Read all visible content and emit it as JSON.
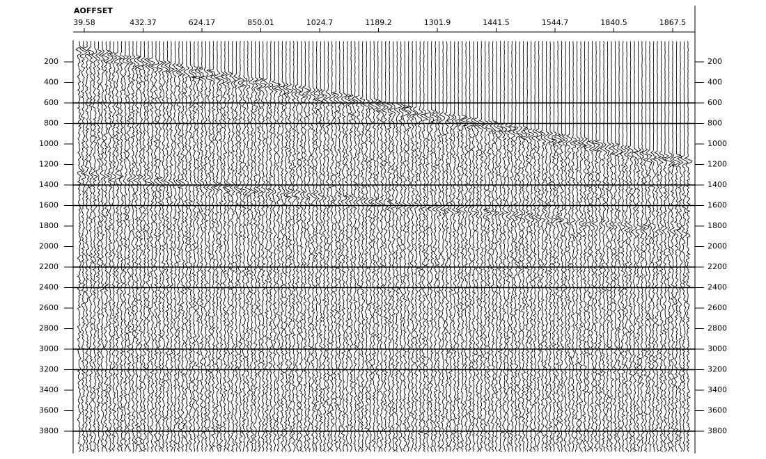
{
  "chart_data": {
    "type": "wiggle",
    "x_label": "AOFFSET",
    "categories": [
      "39.58",
      "432.37",
      "624.17",
      "850.01",
      "1024.7",
      "1189.2",
      "1301.9",
      "1441.5",
      "1544.7",
      "1840.5",
      "1867.5"
    ],
    "ylim": [
      0,
      4000
    ],
    "yticks": [
      200,
      400,
      600,
      800,
      1000,
      1200,
      1400,
      1600,
      1800,
      2000,
      2200,
      2400,
      2600,
      2800,
      3000,
      3200,
      3400,
      3600,
      3800
    ],
    "timing_lines": [
      600,
      800,
      1400,
      1600,
      2200,
      2400,
      3000,
      3200,
      3800
    ],
    "color": "#000000"
  }
}
